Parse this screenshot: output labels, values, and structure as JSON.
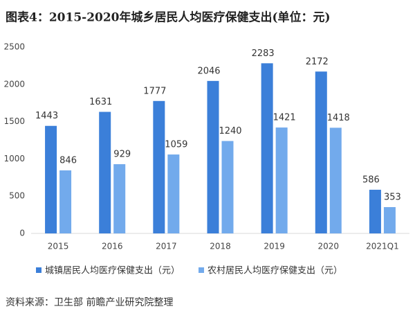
{
  "chart_data": {
    "type": "bar",
    "title": "图表4：2015-2020年城乡居民人均医疗保健支出(单位：元)",
    "categories": [
      "2015",
      "2016",
      "2017",
      "2018",
      "2019",
      "2020",
      "2021Q1"
    ],
    "series": [
      {
        "name": "城镇居民人均医疗保健支出（元）",
        "color": "#3b7fd9",
        "values": [
          1443,
          1631,
          1777,
          2046,
          2283,
          2172,
          586
        ]
      },
      {
        "name": "农村居民人均医疗保健支出（元）",
        "color": "#72aaec",
        "values": [
          846,
          929,
          1059,
          1240,
          1421,
          1418,
          353
        ]
      }
    ],
    "ylim": [
      0,
      2500
    ],
    "yticks": [
      0,
      500,
      1000,
      1500,
      2000,
      2500
    ],
    "grid": false,
    "legend": "bottom",
    "source": "资料来源：卫生部 前瞻产业研究院整理"
  }
}
